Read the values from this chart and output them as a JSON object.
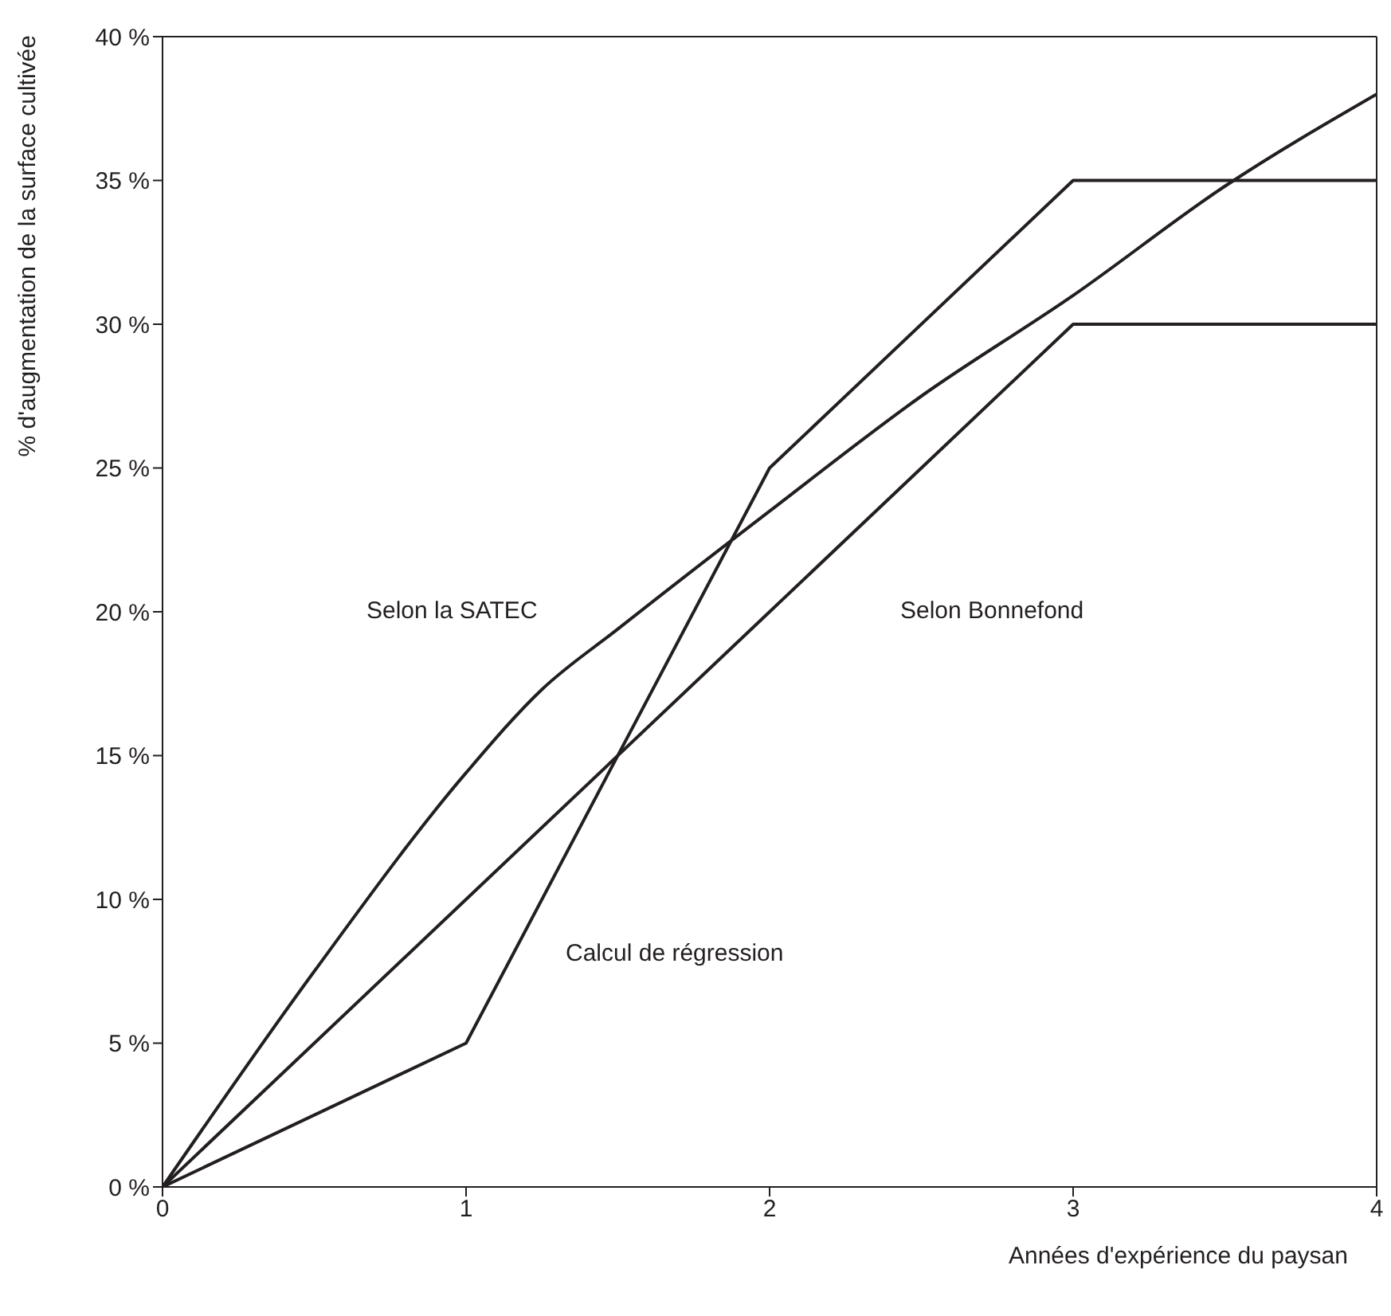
{
  "chart_data": {
    "type": "line",
    "xlabel": "Années d'expérience du paysan",
    "ylabel": "% d'augmentation de la surface cultivée",
    "xlim": [
      0,
      4
    ],
    "xticks": [
      0,
      1,
      2,
      3,
      4
    ],
    "ylim": [
      0,
      40
    ],
    "yticks": [
      {
        "value": 0,
        "label": "0 %"
      },
      {
        "value": 5,
        "label": "5 %"
      },
      {
        "value": 10,
        "label": "10 %"
      },
      {
        "value": 15,
        "label": "15 %"
      },
      {
        "value": 20,
        "label": "20 %"
      },
      {
        "value": 25,
        "label": "25 %"
      },
      {
        "value": 30,
        "label": "30 %"
      },
      {
        "value": 35,
        "label": "35 %"
      },
      {
        "value": 40,
        "label": "40 %"
      }
    ],
    "marker": "none",
    "line_style": "solid",
    "series": [
      {
        "color": "#231f20",
        "x": [
          0,
          0.5,
          1,
          1.25,
          1.5,
          2,
          2.5,
          3,
          3.5,
          4
        ],
        "values": [
          0,
          7.5,
          14.4,
          17.3,
          19.4,
          23.5,
          27.5,
          31,
          34.8,
          38
        ]
      },
      {
        "color": "#231f20",
        "x": [
          0,
          1,
          2,
          3,
          4
        ],
        "values": [
          0,
          10,
          20,
          30,
          30
        ]
      },
      {
        "color": "#231f20",
        "x": [
          0,
          1,
          2,
          3,
          4
        ],
        "values": [
          0,
          5,
          25,
          35,
          35
        ]
      }
    ],
    "annotations": [
      "Selon la SATEC",
      "Selon Bonnefond",
      "Calcul de régression"
    ]
  }
}
